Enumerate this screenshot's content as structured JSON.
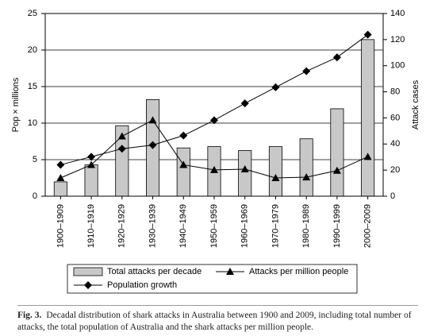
{
  "chart_data": {
    "type": "combo",
    "categories": [
      "1900–1909",
      "1910–1919",
      "1920–1929",
      "1930–1939",
      "1940–1949",
      "1950–1959",
      "1960–1969",
      "1970–1979",
      "1980–1989",
      "1990–1999",
      "2000–2009"
    ],
    "series": [
      {
        "name": "Total attacks per decade",
        "type": "bar",
        "axis": "y2",
        "color": "#c8c8c8",
        "values": [
          11,
          24,
          54,
          74,
          37,
          38,
          35,
          38,
          44,
          67,
          120
        ]
      },
      {
        "name": "Attacks per million people",
        "type": "line",
        "marker": "triangle",
        "color": "#000000",
        "values": [
          2.5,
          4.3,
          8.2,
          10.4,
          4.3,
          3.6,
          3.7,
          2.5,
          2.6,
          3.5,
          5.4
        ]
      },
      {
        "name": "Population growth",
        "type": "line",
        "marker": "diamond",
        "color": "#000000",
        "values": [
          4.3,
          5.4,
          6.5,
          7.0,
          8.3,
          10.4,
          12.7,
          14.9,
          17.1,
          19.0,
          22.1
        ]
      }
    ],
    "ylabel": "Pop × millions",
    "y2label": "Attack cases",
    "ylim": [
      0,
      25
    ],
    "yticks": [
      0,
      5,
      10,
      15,
      20,
      25
    ],
    "y2lim": [
      0,
      140
    ],
    "y2ticks": [
      0,
      20,
      40,
      60,
      80,
      100,
      120,
      140
    ],
    "grid": true,
    "caption_label": "Fig. 3.",
    "caption": "Decadal distribution of shark attacks in Australia between 1900 and 2009, including total number of attacks, the total population of Australia and the shark attacks per million people."
  }
}
